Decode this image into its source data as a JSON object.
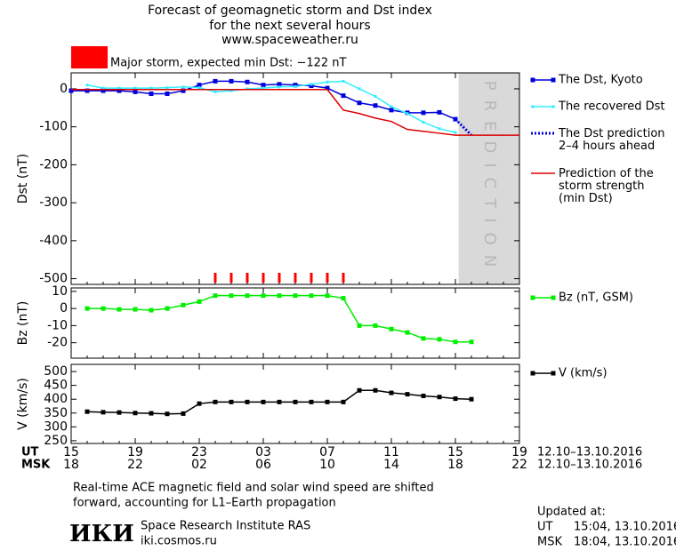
{
  "header": {
    "title": [
      "Forecast of geomagnetic storm and Dst index",
      "for the next several hours",
      "www.spaceweather.ru"
    ]
  },
  "storm_legend": {
    "color": "#ff0000",
    "text": "Major storm, expected min Dst: −122 nT"
  },
  "chart_data": [
    {
      "type": "line",
      "ylabel": "Dst (nT)",
      "xlim": [
        0,
        28
      ],
      "ylim": [
        -515,
        42
      ],
      "yticks": [
        0,
        -100,
        -200,
        -300,
        -400,
        -500
      ],
      "prediction": {
        "from": 24.2,
        "label": "PREDICTION",
        "color": "#d9d9d9"
      },
      "storm_hours": {
        "color": "#ff0000",
        "x": [
          9,
          10,
          11,
          12,
          13,
          14,
          15,
          16,
          17
        ]
      },
      "series": [
        {
          "name": "The Dst, Kyoto",
          "color": "#0000dd",
          "marker": "square",
          "style": "solid",
          "x": [
            0,
            1,
            2,
            3,
            4,
            5,
            6,
            7,
            8,
            9,
            10,
            11,
            12,
            13,
            14,
            15,
            16,
            17,
            18,
            19,
            20,
            21,
            22,
            23,
            24
          ],
          "values": [
            -5,
            -5,
            -5,
            -5,
            -8,
            -13,
            -13,
            -5,
            10,
            20,
            20,
            18,
            10,
            12,
            10,
            8,
            2,
            -18,
            -37,
            -44,
            -56,
            -63,
            -63,
            -62,
            -80
          ]
        },
        {
          "name": "The recovered Dst",
          "color": "#33eeff",
          "marker": "small-square",
          "style": "solid",
          "x": [
            1,
            2,
            3,
            4,
            5,
            6,
            7,
            8,
            9,
            10,
            11,
            12,
            13,
            14,
            15,
            16,
            17,
            18,
            19,
            20,
            21,
            22,
            23,
            24
          ],
          "values": [
            10,
            2,
            2,
            2,
            2,
            3,
            5,
            3,
            -8,
            -5,
            0,
            2,
            5,
            6,
            12,
            18,
            20,
            0,
            -20,
            -47,
            -65,
            -88,
            -105,
            -115
          ]
        },
        {
          "name": "The Dst prediction\n2–4 hours ahead",
          "color": "#0000dd",
          "marker": null,
          "style": "dotted",
          "x": [
            24,
            25
          ],
          "values": [
            -80,
            -122
          ]
        },
        {
          "name": "Prediction of the\nstorm strength\n(min Dst)",
          "color": "#dd0000",
          "marker": null,
          "style": "solid",
          "x": [
            0,
            16,
            17,
            18,
            19,
            20,
            21,
            22,
            23,
            24,
            28
          ],
          "values": [
            -2,
            -2,
            -56,
            -65,
            -77,
            -86,
            -107,
            -112,
            -117,
            -122,
            -122
          ]
        }
      ]
    },
    {
      "type": "line",
      "ylabel": "Bz (nT)",
      "xlim": [
        0,
        28
      ],
      "ylim": [
        -29,
        12
      ],
      "yticks": [
        10,
        0,
        -10,
        -20
      ],
      "series": [
        {
          "name": "Bz (nT, GSM)",
          "color": "#00ee00",
          "marker": "square",
          "style": "solid",
          "x": [
            1,
            2,
            3,
            4,
            5,
            6,
            7,
            8,
            9,
            10,
            11,
            12,
            13,
            14,
            15,
            16,
            17,
            18,
            19,
            20,
            21,
            22,
            23,
            24,
            25
          ],
          "values": [
            0,
            0,
            -0.5,
            -0.5,
            -1,
            0,
            2,
            4,
            7.5,
            7.5,
            7.5,
            7.5,
            7.5,
            7.5,
            7.5,
            7.5,
            6,
            -10,
            -10,
            -12,
            -14,
            -17.5,
            -18,
            -19.5,
            -19.5
          ]
        }
      ]
    },
    {
      "type": "line",
      "ylabel": "V (km/s)",
      "xlim": [
        0,
        28
      ],
      "ylim": [
        240,
        526
      ],
      "yticks": [
        500,
        450,
        400,
        350,
        300,
        250
      ],
      "series": [
        {
          "name": "V (km/s)",
          "color": "#000000",
          "marker": "square",
          "style": "solid",
          "x": [
            1,
            2,
            3,
            4,
            5,
            6,
            7,
            8,
            9,
            10,
            11,
            12,
            13,
            14,
            15,
            16,
            17,
            18,
            19,
            20,
            21,
            22,
            23,
            24,
            25
          ],
          "values": [
            355,
            353,
            352,
            350,
            349,
            347,
            348,
            384,
            390,
            390,
            390,
            390,
            390,
            390,
            390,
            390,
            390,
            432,
            432,
            423,
            418,
            412,
            408,
            402,
            400
          ]
        }
      ]
    }
  ],
  "x_axis": {
    "ut_label": "UT",
    "msk_label": "MSK",
    "date_range": "12.10–13.10.2016",
    "xticks": [
      {
        "value": 0,
        "label": "15"
      },
      {
        "value": 4,
        "label": "19"
      },
      {
        "value": 8,
        "label": "23"
      },
      {
        "value": 12,
        "label": "03"
      },
      {
        "value": 16,
        "label": "07"
      },
      {
        "value": 20,
        "label": "11"
      },
      {
        "value": 24,
        "label": "15"
      },
      {
        "value": 28,
        "label": "19"
      }
    ],
    "msk_ticks": [
      {
        "value": 0,
        "label": "18"
      },
      {
        "value": 4,
        "label": "22"
      },
      {
        "value": 8,
        "label": "02"
      },
      {
        "value": 12,
        "label": "06"
      },
      {
        "value": 16,
        "label": "10"
      },
      {
        "value": 20,
        "label": "14"
      },
      {
        "value": 24,
        "label": "18"
      },
      {
        "value": 28,
        "label": "22"
      }
    ]
  },
  "footer": {
    "note": [
      "Real-time ACE magnetic field and solar wind speed are shifted",
      "forward, accounting for L1–Earth propagation"
    ],
    "logo": "ИКИ",
    "institute": "Space Research Institute RAS",
    "site": "iki.cosmos.ru",
    "updated": {
      "label": "Updated at:",
      "ut_label": "UT",
      "ut_time": "15:04, 13.10.2016",
      "msk_label": "MSK",
      "msk_time": "18:04, 13.10.2016"
    }
  }
}
